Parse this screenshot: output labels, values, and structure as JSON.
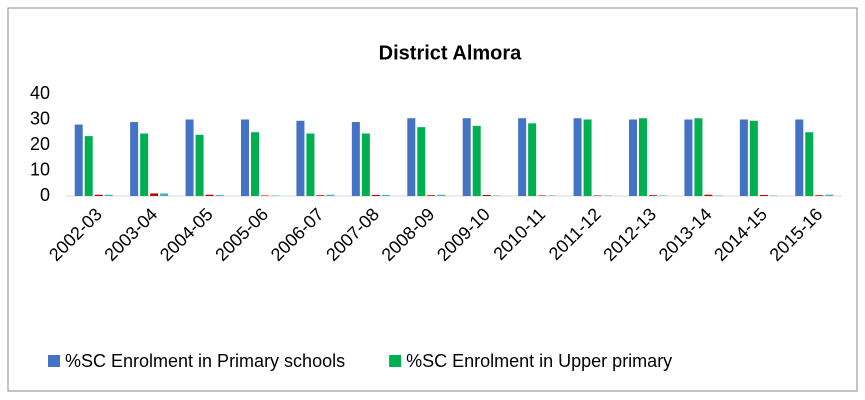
{
  "chart_data": {
    "type": "bar",
    "title": "District  Almora",
    "categories": [
      "2002-03",
      "2003-04",
      "2004-05",
      "2005-06",
      "2006-07",
      "2007-08",
      "2008-09",
      "2009-10",
      "2010-11",
      "2011-12",
      "2012-13",
      "2013-14",
      "2014-15",
      "2015-16"
    ],
    "series": [
      {
        "name": "%SC Enrolment in Primary schools",
        "color": "#4472c4",
        "values": [
          28,
          29,
          30,
          30,
          29.5,
          29,
          30.5,
          30.5,
          30.5,
          30.5,
          30,
          30,
          30,
          30
        ]
      },
      {
        "name": "%SC Enrolment in Upper primary",
        "color": "#00b050",
        "values": [
          23.5,
          24.5,
          24,
          25,
          24.5,
          24.5,
          27,
          27.5,
          28.5,
          30,
          30.5,
          30.5,
          29.5,
          25
        ]
      },
      {
        "color": "#c00000",
        "values": [
          0.5,
          1,
          0.5,
          0.2,
          0.3,
          0.4,
          0.3,
          0.4,
          0.2,
          0.2,
          0.3,
          0.5,
          0.4,
          0.3
        ]
      },
      {
        "color": "#4bacc6",
        "values": [
          0.5,
          1,
          0.4,
          0.2,
          0.5,
          0.4,
          0.5,
          0.2,
          0.2,
          0.2,
          0.2,
          0.2,
          0.2,
          0.5
        ]
      }
    ],
    "ylim": [
      0,
      40
    ],
    "yticks": [
      0,
      10,
      20,
      30,
      40
    ],
    "grid": false
  }
}
